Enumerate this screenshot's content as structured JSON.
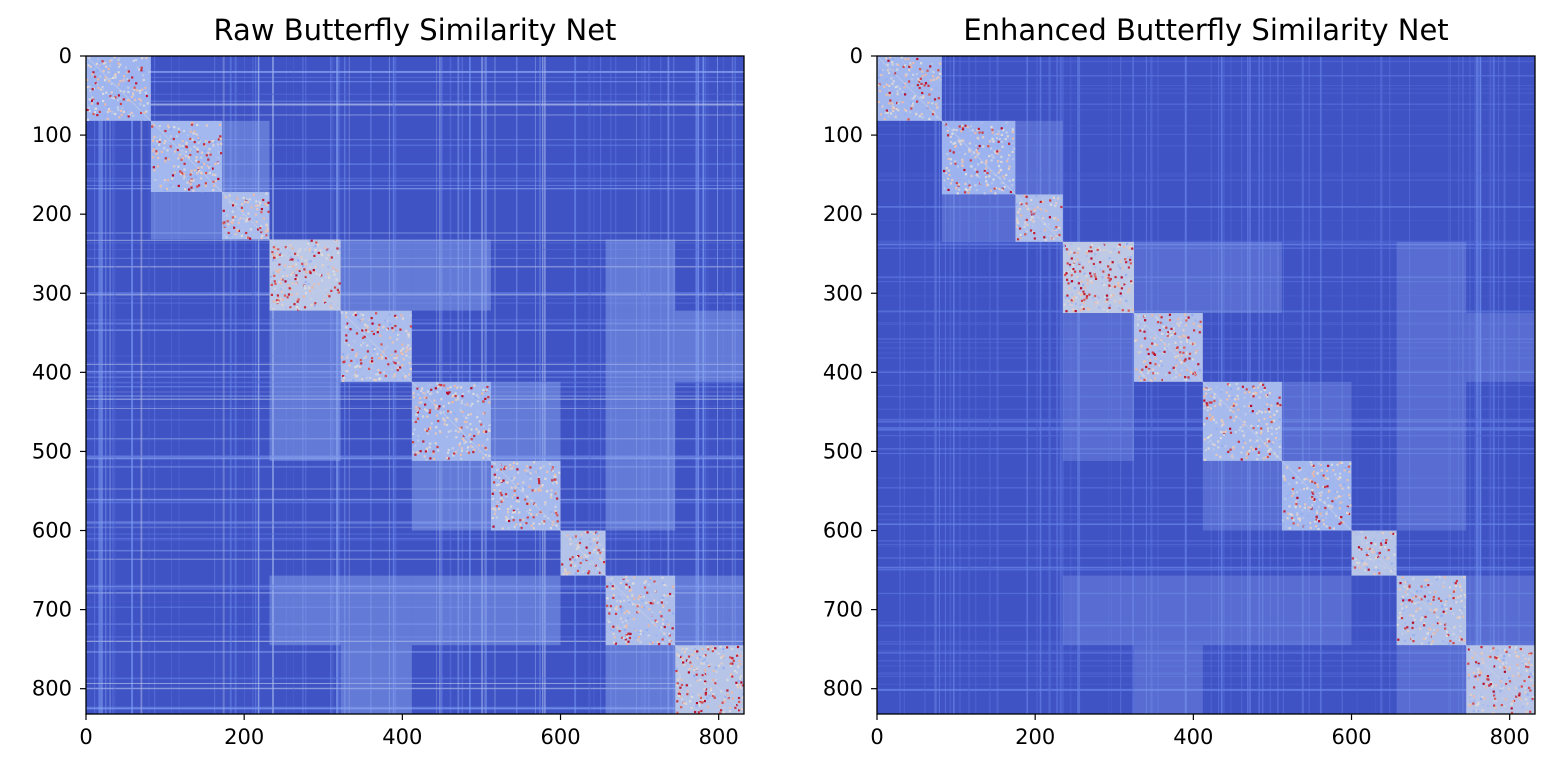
{
  "chart_data": [
    {
      "type": "heatmap",
      "title": "Raw Butterfly Similarity Net",
      "xlabel": "",
      "ylabel": "",
      "n": 832,
      "xlim": [
        0,
        832
      ],
      "ylim": [
        832,
        0
      ],
      "xticks": [
        "0",
        "200",
        "400",
        "600",
        "800"
      ],
      "yticks": [
        "0",
        "100",
        "200",
        "300",
        "400",
        "500",
        "600",
        "700",
        "800"
      ],
      "colormap": "coolwarm",
      "clusters": [
        [
          0,
          82
        ],
        [
          82,
          172
        ],
        [
          172,
          232
        ],
        [
          232,
          322
        ],
        [
          322,
          412
        ],
        [
          412,
          512
        ],
        [
          512,
          600
        ],
        [
          600,
          657
        ],
        [
          657,
          745
        ],
        [
          745,
          832
        ]
      ],
      "cluster_intensity": [
        0.48,
        0.52,
        0.6,
        0.78,
        0.6,
        0.5,
        0.55,
        0.68,
        0.62,
        0.72
      ],
      "off_diagonal_intensity": 0.15
    },
    {
      "type": "heatmap",
      "title": "Enhanced Butterfly Similarity Net",
      "xlabel": "",
      "ylabel": "",
      "n": 832,
      "xlim": [
        0,
        832
      ],
      "ylim": [
        832,
        0
      ],
      "xticks": [
        "0",
        "200",
        "400",
        "600",
        "800"
      ],
      "yticks": [
        "0",
        "100",
        "200",
        "300",
        "400",
        "500",
        "600",
        "700",
        "800"
      ],
      "colormap": "coolwarm",
      "clusters": [
        [
          0,
          82
        ],
        [
          82,
          175
        ],
        [
          175,
          235
        ],
        [
          235,
          325
        ],
        [
          325,
          412
        ],
        [
          412,
          512
        ],
        [
          512,
          600
        ],
        [
          600,
          657
        ],
        [
          657,
          745
        ],
        [
          745,
          832
        ]
      ],
      "cluster_intensity": [
        0.5,
        0.45,
        0.62,
        0.8,
        0.66,
        0.55,
        0.5,
        0.72,
        0.68,
        0.74
      ],
      "off_diagonal_intensity": 0.06
    }
  ]
}
